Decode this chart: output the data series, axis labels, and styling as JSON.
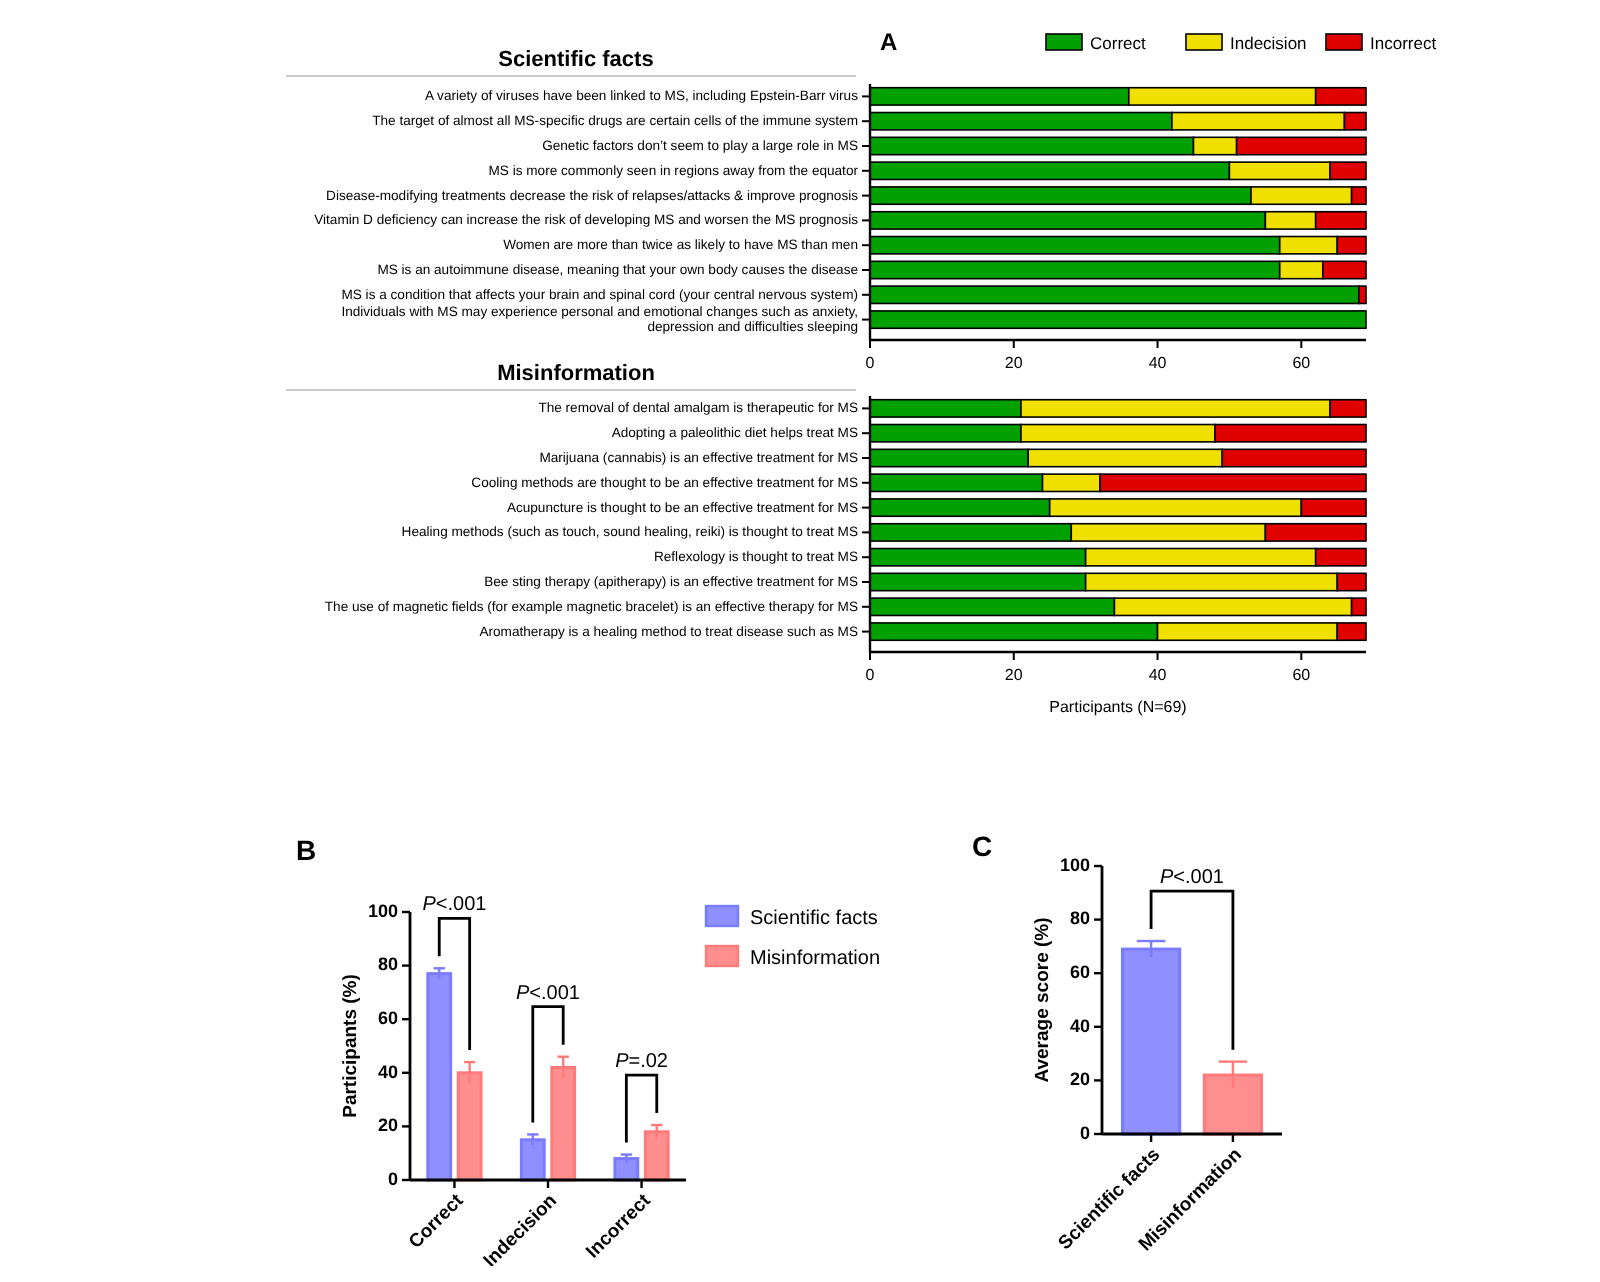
{
  "chart_data": [
    {
      "type": "bar",
      "orientation": "horizontal",
      "stacked": true,
      "title": "Scientific facts",
      "annotations": [
        "A"
      ],
      "legend": "top right",
      "xlim": [
        0,
        69
      ],
      "xticks": [
        0,
        20,
        40,
        60
      ],
      "categories": [
        "A variety of viruses have been linked to MS, including Epstein-Barr virus",
        "The target of almost all MS-specific drugs are certain cells of the immune system",
        "Genetic factors don’t seem to play a large role in MS",
        "MS is more commonly seen in regions away from the equator",
        "Disease-modifying treatments decrease the risk of relapses/attacks & improve prognosis",
        "Vitamin D deficiency can increase the risk of developing MS and worsen the MS prognosis",
        "Women are more than twice as likely to have MS than men",
        "MS is an autoimmune disease, meaning that your own body causes the disease",
        "MS is a condition that affects your brain and spinal cord (your central nervous system)",
        "Individuals with MS may experience personal and emotional changes such as anxiety, depression and difficulties sleeping"
      ],
      "series": [
        {
          "name": "Correct",
          "color": "#00a000",
          "values": [
            36,
            42,
            45,
            50,
            53,
            55,
            57,
            57,
            68,
            69
          ]
        },
        {
          "name": "Indecision",
          "color": "#f0e000",
          "values": [
            26,
            24,
            6,
            14,
            14,
            7,
            8,
            6,
            0,
            0
          ]
        },
        {
          "name": "Incorrect",
          "color": "#e00000",
          "values": [
            7,
            3,
            18,
            5,
            2,
            7,
            4,
            6,
            1,
            0
          ]
        }
      ]
    },
    {
      "type": "bar",
      "orientation": "horizontal",
      "stacked": true,
      "title": "Misinformation",
      "xlabel": "Participants (N=69)",
      "xlim": [
        0,
        69
      ],
      "xticks": [
        0,
        20,
        40,
        60
      ],
      "categories": [
        "The removal of dental amalgam is therapeutic for MS",
        "Adopting a paleolithic diet helps treat MS",
        "Marijuana (cannabis) is an effective treatment for MS",
        "Cooling methods are thought to be an effective treatment for MS",
        "Acupuncture is thought to be an effective treatment for MS",
        "Healing methods (such as touch, sound healing, reiki) is thought to treat MS",
        "Reflexology is thought to treat MS",
        "Bee sting therapy (apitherapy) is an effective treatment for MS",
        "The use of magnetic fields (for example magnetic bracelet) is an effective therapy for MS",
        "Aromatherapy is a healing method to treat disease such as MS"
      ],
      "series": [
        {
          "color": "#00a000",
          "values": [
            21,
            21,
            22,
            24,
            25,
            28,
            30,
            30,
            34,
            40
          ]
        },
        {
          "color": "#f0e000",
          "values": [
            43,
            27,
            27,
            8,
            35,
            27,
            32,
            35,
            33,
            25
          ]
        },
        {
          "color": "#e00000",
          "values": [
            5,
            21,
            20,
            37,
            9,
            14,
            7,
            4,
            2,
            4
          ]
        }
      ]
    },
    {
      "type": "bar",
      "ylabel": "Participants (%)",
      "annotations": [
        "B",
        "P<.001",
        "P<.001",
        "P=.02"
      ],
      "legend": "right",
      "ylim": [
        0,
        100
      ],
      "yticks": [
        0,
        20,
        40,
        60,
        80,
        100
      ],
      "categories": [
        "Correct",
        "Indecision",
        "Incorrect"
      ],
      "series": [
        {
          "name": "Scientific facts",
          "color": "#7b7bff",
          "values": [
            77,
            15,
            8
          ],
          "errors": [
            2,
            2,
            1.5
          ]
        },
        {
          "name": "Misinformation",
          "color": "#ff7b7b",
          "values": [
            40,
            42,
            18
          ],
          "errors": [
            4,
            4,
            2.5
          ]
        }
      ]
    },
    {
      "type": "bar",
      "ylabel": "Average score (%)",
      "annotations": [
        "C",
        "P<.001"
      ],
      "ylim": [
        0,
        100
      ],
      "yticks": [
        0,
        20,
        40,
        60,
        80,
        100
      ],
      "categories": [
        "Scientific facts",
        "Misinformation"
      ],
      "values": [
        69,
        22
      ],
      "colors": [
        "#7b7bff",
        "#ff7b7b"
      ],
      "errors": [
        3,
        5
      ]
    }
  ]
}
